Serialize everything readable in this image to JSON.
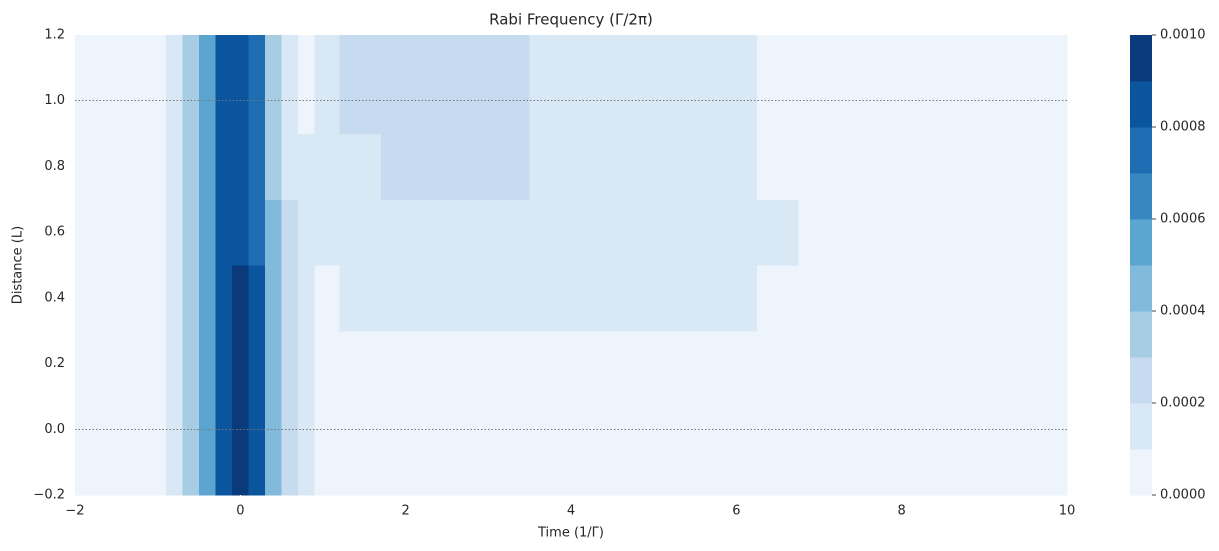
{
  "chart_data": {
    "type": "contour",
    "title": "Rabi Frequency (Γ/2π)",
    "xlabel": "Time (1/Γ)",
    "ylabel": "Distance (L)",
    "xlim": [
      -2,
      10
    ],
    "ylim": [
      -0.2,
      1.2
    ],
    "xticks": [
      {
        "value": -2,
        "label": "−2"
      },
      0,
      2,
      4,
      6,
      8,
      10
    ],
    "yticks": [
      {
        "value": -0.2,
        "label": "−0.2"
      },
      {
        "value": 0.0,
        "label": "0.0"
      },
      0.2,
      0.4,
      0.6,
      0.8,
      {
        "value": 1.0,
        "label": "1.0"
      },
      1.2
    ],
    "hlines": [
      0,
      1
    ],
    "x": [
      -2,
      -1,
      -0.8,
      -0.6,
      -0.4,
      -0.2,
      0,
      0.2,
      0.4,
      0.6,
      0.8,
      1.0,
      1.4,
      2,
      3,
      4,
      5,
      6,
      6.5,
      7,
      8,
      10
    ],
    "y": [
      -0.2,
      0,
      0.2,
      0.4,
      0.6,
      0.8,
      1.0,
      1.2
    ],
    "z": [
      [
        2e-05,
        5e-05,
        0.00015,
        0.00035,
        0.00055,
        0.00085,
        0.00095,
        0.00085,
        0.00045,
        0.00025,
        0.00015,
        5e-05,
        4e-05,
        3e-05,
        3e-05,
        2e-05,
        2e-05,
        2e-05,
        2e-05,
        2e-05,
        2e-05,
        2e-05
      ],
      [
        2e-05,
        5e-05,
        0.00015,
        0.00035,
        0.00055,
        0.00085,
        0.00095,
        0.00085,
        0.00045,
        0.00025,
        0.00015,
        5e-05,
        4e-05,
        3e-05,
        3e-05,
        2e-05,
        2e-05,
        2e-05,
        2e-05,
        2e-05,
        2e-05,
        2e-05
      ],
      [
        2e-05,
        5e-05,
        0.00015,
        0.00035,
        0.00055,
        0.00085,
        0.00095,
        0.00085,
        0.00045,
        0.00022,
        0.00012,
        5e-05,
        5e-05,
        4e-05,
        4e-05,
        4e-05,
        4e-05,
        3e-05,
        2e-05,
        2e-05,
        2e-05,
        2e-05
      ],
      [
        2e-05,
        5e-05,
        0.00015,
        0.00035,
        0.00055,
        0.00085,
        0.00092,
        0.00082,
        0.00042,
        0.0002,
        0.00012,
        8e-05,
        0.00012,
        0.00013,
        0.00013,
        0.00013,
        0.00013,
        0.00013,
        6e-05,
        3e-05,
        2e-05,
        2e-05
      ],
      [
        2e-05,
        5e-05,
        0.00015,
        0.00035,
        0.00055,
        0.00085,
        0.00085,
        0.00075,
        0.0004,
        0.0002,
        0.00012,
        0.00012,
        0.00015,
        0.00015,
        0.00015,
        0.00015,
        0.00015,
        0.00015,
        0.00012,
        3e-05,
        2e-05,
        2e-05
      ],
      [
        2e-05,
        5e-05,
        0.00015,
        0.00035,
        0.00055,
        0.00085,
        0.00085,
        0.00072,
        0.00038,
        0.00018,
        0.00012,
        0.00013,
        0.00018,
        0.00022,
        0.00022,
        0.00015,
        0.00015,
        0.00014,
        5e-05,
        3e-05,
        2e-05,
        2e-05
      ],
      [
        2e-05,
        5e-05,
        0.00015,
        0.00035,
        0.00055,
        0.00085,
        0.00085,
        0.0007,
        0.00035,
        0.00016,
        9e-05,
        0.00015,
        0.00022,
        0.00022,
        0.00022,
        0.00015,
        0.00015,
        0.00012,
        4e-05,
        3e-05,
        2e-05,
        2e-05
      ],
      [
        2e-05,
        5e-05,
        0.00015,
        0.00035,
        0.00055,
        0.00085,
        0.00085,
        0.0007,
        0.00035,
        0.00016,
        9e-05,
        0.00015,
        0.00022,
        0.00022,
        0.00022,
        0.00015,
        0.00015,
        0.00015,
        3e-05,
        3e-05,
        2e-05,
        2e-05
      ]
    ],
    "levels": [
      0,
      0.0001,
      0.0002,
      0.0003,
      0.0004,
      0.0005,
      0.0006,
      0.0007,
      0.0008,
      0.0009,
      0.001
    ],
    "colors": [
      "#edf4fc",
      "#d9e8f5",
      "#c6dbef",
      "#a6cde3",
      "#82badb",
      "#5da5d1",
      "#3887c1",
      "#1e6db2",
      "#0b559f",
      "#0a3a7a"
    ],
    "colorbar_ticks": [
      {
        "value": 0,
        "label": "0.0000"
      },
      {
        "value": 0.0002,
        "label": "0.0002"
      },
      {
        "value": 0.0004,
        "label": "0.0004"
      },
      {
        "value": 0.0006,
        "label": "0.0006"
      },
      {
        "value": 0.0008,
        "label": "0.0008"
      },
      {
        "value": 0.001,
        "label": "0.0010"
      }
    ]
  }
}
